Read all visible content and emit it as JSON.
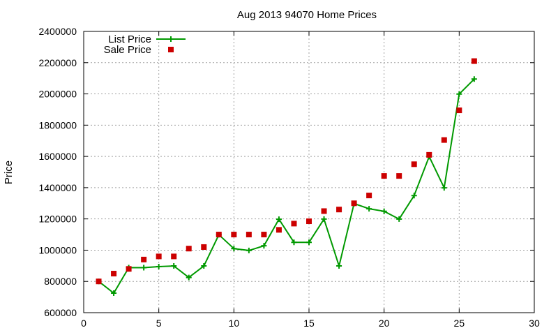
{
  "chart_data": {
    "type": "line",
    "title": "Aug 2013 94070 Home Prices",
    "xlabel": "",
    "ylabel": "Price",
    "xlim": [
      0,
      30
    ],
    "ylim": [
      600000,
      2400000
    ],
    "xticks": [
      0,
      5,
      10,
      15,
      20,
      25,
      30
    ],
    "yticks": [
      600000,
      800000,
      1000000,
      1200000,
      1400000,
      1600000,
      1800000,
      2000000,
      2200000,
      2400000
    ],
    "xtick_labels": [
      "0",
      "5",
      "10",
      "15",
      "20",
      "25",
      "30"
    ],
    "ytick_labels": [
      "600000",
      "800000",
      "1000000",
      "1200000",
      "1400000",
      "1600000",
      "1800000",
      "2000000",
      "2200000",
      "2400000"
    ],
    "grid": true,
    "legend_position": "top-left",
    "series": [
      {
        "name": "List Price",
        "style": "line-with-plus-markers",
        "color": "#009900",
        "x": [
          1,
          2,
          3,
          4,
          5,
          6,
          7,
          8,
          9,
          10,
          11,
          12,
          13,
          14,
          15,
          16,
          17,
          18,
          19,
          20,
          21,
          22,
          23,
          24,
          25,
          26
        ],
        "y": [
          800000,
          725000,
          888000,
          888000,
          895000,
          899000,
          825000,
          899000,
          1099000,
          1010000,
          998000,
          1028000,
          1198000,
          1050000,
          1050000,
          1199000,
          899000,
          1298000,
          1265000,
          1249000,
          1199000,
          1349000,
          1599000,
          1399000,
          1999000,
          2095000
        ]
      },
      {
        "name": "Sale Price",
        "style": "square-markers",
        "color": "#cc0000",
        "x": [
          1,
          2,
          3,
          4,
          5,
          6,
          7,
          8,
          9,
          10,
          11,
          12,
          13,
          14,
          15,
          16,
          17,
          18,
          19,
          20,
          21,
          22,
          23,
          24,
          25,
          26
        ],
        "y": [
          800000,
          850000,
          880000,
          940000,
          960000,
          960000,
          1010000,
          1020000,
          1100000,
          1100000,
          1100000,
          1100000,
          1130000,
          1170000,
          1185000,
          1250000,
          1260000,
          1300000,
          1350000,
          1475000,
          1475000,
          1550000,
          1610000,
          1705000,
          1895000,
          2210000
        ]
      }
    ]
  }
}
